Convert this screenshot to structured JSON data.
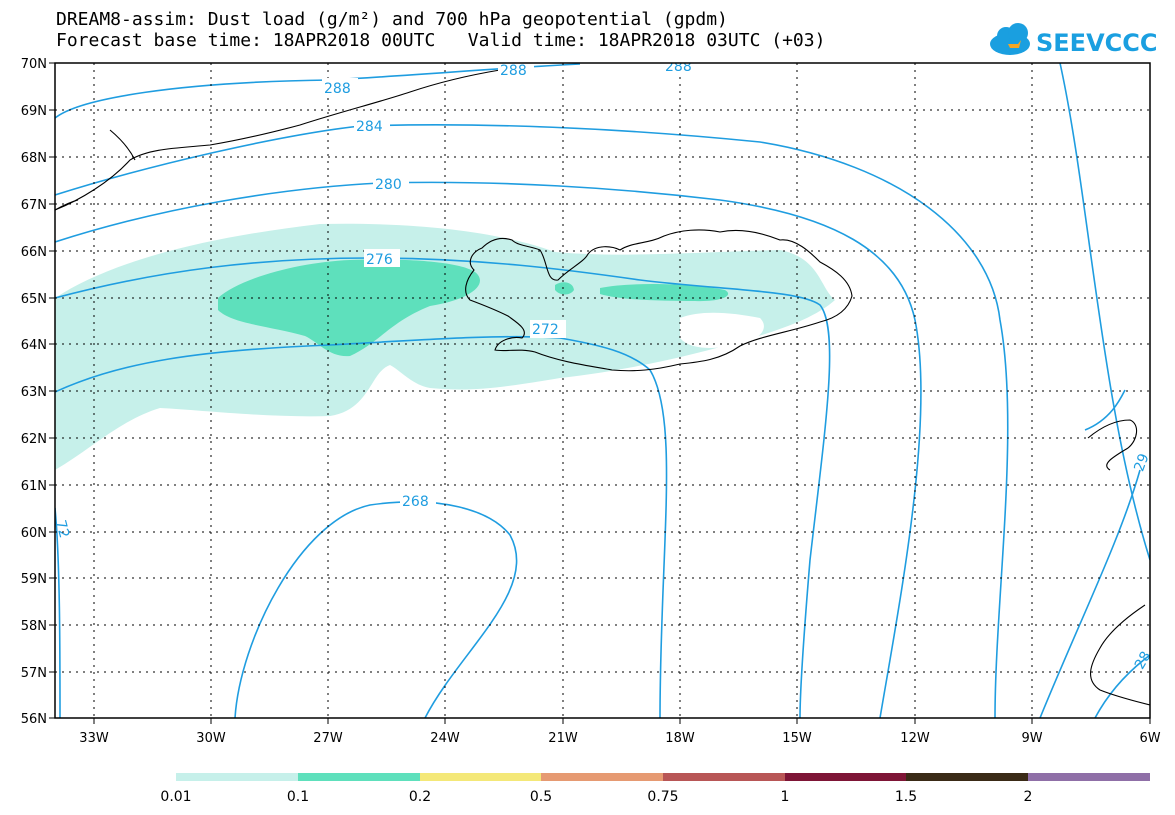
{
  "header": {
    "title_line1": "DREAM8-assim: Dust load (g/m²) and 700 hPa geopotential (gpdm)",
    "title_line2": "Forecast base time: 18APR2018 00UTC   Valid time: 18APR2018 03UTC (+03)",
    "logo_text": "SEEVCCC"
  },
  "map": {
    "lon_range": [
      -34.5,
      -6
    ],
    "lat_range": [
      56,
      70
    ],
    "lat_labels": [
      "70N",
      "69N",
      "68N",
      "67N",
      "66N",
      "65N",
      "64N",
      "63N",
      "62N",
      "61N",
      "60N",
      "59N",
      "58N",
      "57N",
      "56N"
    ],
    "lon_labels": [
      "33W",
      "30W",
      "27W",
      "24W",
      "21W",
      "18W",
      "15W",
      "12W",
      "9W",
      "6W"
    ],
    "contour_color": "#1f9de0",
    "contour_labels": [
      "288",
      "288",
      "288",
      "284",
      "280",
      "276",
      "272",
      "268",
      "72",
      "29",
      "28"
    ]
  },
  "colorbar": {
    "colors": [
      "#c6f0ea",
      "#5ee0bc",
      "#f4e878",
      "#e69a72",
      "#b85656",
      "#7e1536",
      "#3a2a16",
      "#8f6fa7"
    ],
    "labels": [
      "0.01",
      "0.1",
      "0.2",
      "0.5",
      "0.75",
      "1",
      "1.5",
      "2"
    ]
  }
}
